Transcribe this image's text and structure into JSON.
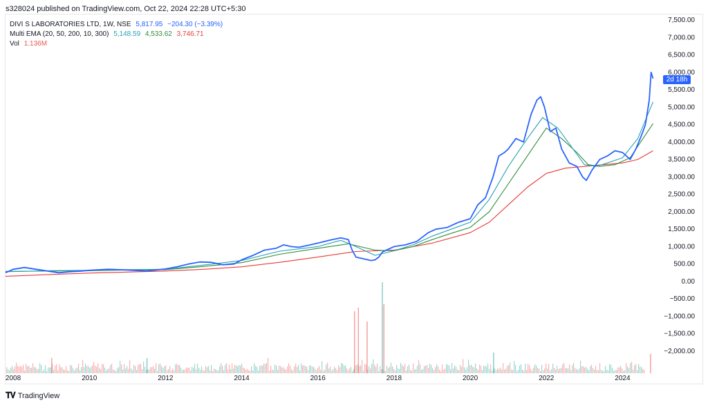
{
  "publish_line": "s328024 published on TradingView.com, Oct 22, 2024 22:28 UTC+5:30",
  "legend": {
    "symbol": "DIVI S LABORATORIES LTD, 1W, NSE",
    "last": "5,817.95",
    "change": "−204.30 (−3.39%)",
    "ema_label": "Multi EMA (20, 50, 200, 10, 300)",
    "ema_values": [
      "5,148.59",
      "4,533.62",
      "3,746.71"
    ],
    "vol_label": "Vol",
    "vol_value": "1.136M"
  },
  "price_tag": "2d 18h",
  "brand": "TradingView",
  "colors": {
    "price": "#2962ff",
    "ema20": "#26a0b3",
    "ema50": "#2e8b3a",
    "ema200": "#e53935",
    "vol_up": "#26a69a",
    "vol_down": "#ef5350"
  },
  "chart_data": {
    "type": "line",
    "title": "DIVI S LABORATORIES LTD, 1W, NSE",
    "ylim": [
      -2000,
      7500
    ],
    "y_ticks": [
      "7,500.00",
      "7,000.00",
      "6,500.00",
      "6,000.00",
      "5,500.00",
      "5,000.00",
      "4,500.00",
      "4,000.00",
      "3,500.00",
      "3,000.00",
      "2,500.00",
      "2,000.00",
      "1,500.00",
      "1,000.00",
      "500.00",
      "0.00",
      "−500.00",
      "−1,000.00",
      "−1,500.00",
      "−2,000.00"
    ],
    "y_tick_values": [
      7500,
      7000,
      6500,
      6000,
      5500,
      5000,
      4500,
      4000,
      3500,
      3000,
      2500,
      2000,
      1500,
      1000,
      500,
      0,
      -500,
      -1000,
      -1500,
      -2000
    ],
    "xlim": [
      2007.8,
      2024.9
    ],
    "x_ticks": [
      "2008",
      "2010",
      "2012",
      "2014",
      "2016",
      "2018",
      "2020",
      "2022",
      "2024"
    ],
    "x_tick_values": [
      2008,
      2010,
      2012,
      2014,
      2016,
      2018,
      2020,
      2022,
      2024
    ],
    "series": [
      {
        "name": "DIVI S LABORATORIES LTD",
        "color": "#2962ff",
        "x": [
          2007.8,
          2008.0,
          2008.3,
          2008.6,
          2008.9,
          2009.2,
          2009.5,
          2009.8,
          2010.0,
          2010.5,
          2011.0,
          2011.5,
          2012.0,
          2012.3,
          2012.6,
          2012.9,
          2013.2,
          2013.5,
          2013.8,
          2014.0,
          2014.3,
          2014.6,
          2014.9,
          2015.1,
          2015.3,
          2015.5,
          2015.8,
          2016.0,
          2016.3,
          2016.6,
          2016.8,
          2016.9,
          2017.0,
          2017.2,
          2017.4,
          2017.5,
          2017.6,
          2017.7,
          2018.0,
          2018.3,
          2018.6,
          2018.9,
          2019.1,
          2019.4,
          2019.7,
          2020.0,
          2020.2,
          2020.4,
          2020.6,
          2020.75,
          2020.9,
          2021.0,
          2021.2,
          2021.4,
          2021.6,
          2021.75,
          2021.85,
          2021.95,
          2022.1,
          2022.25,
          2022.4,
          2022.6,
          2022.8,
          2022.95,
          2023.05,
          2023.2,
          2023.4,
          2023.6,
          2023.8,
          2024.0,
          2024.2,
          2024.35,
          2024.5,
          2024.6,
          2024.7,
          2024.75,
          2024.8
        ],
        "y": [
          250,
          350,
          400,
          350,
          300,
          250,
          280,
          300,
          320,
          350,
          330,
          300,
          360,
          420,
          500,
          560,
          550,
          480,
          500,
          620,
          750,
          900,
          950,
          1050,
          1000,
          980,
          1050,
          1100,
          1180,
          1250,
          1200,
          900,
          700,
          650,
          600,
          620,
          700,
          850,
          1000,
          1050,
          1150,
          1400,
          1500,
          1550,
          1700,
          1800,
          2200,
          2400,
          3000,
          3600,
          3700,
          3800,
          4100,
          4000,
          4800,
          5200,
          5300,
          5000,
          4300,
          4400,
          3800,
          3400,
          3300,
          3000,
          2900,
          3200,
          3500,
          3600,
          3750,
          3700,
          3500,
          3800,
          4200,
          4500,
          5200,
          6000,
          5820
        ]
      },
      {
        "name": "EMA 20",
        "color": "#26a0b3",
        "x": [
          2007.8,
          2009.0,
          2010.0,
          2011.0,
          2012.0,
          2013.0,
          2014.0,
          2015.0,
          2016.0,
          2016.6,
          2017.0,
          2017.5,
          2018.0,
          2018.5,
          2019.0,
          2019.5,
          2020.0,
          2020.5,
          2021.0,
          2021.5,
          2021.9,
          2022.3,
          2022.7,
          2023.0,
          2023.3,
          2023.6,
          2024.0,
          2024.4,
          2024.8
        ],
        "y": [
          280,
          310,
          320,
          340,
          350,
          470,
          600,
          870,
          1000,
          1180,
          1000,
          750,
          880,
          1050,
          1300,
          1500,
          1700,
          2350,
          3300,
          4100,
          4700,
          4400,
          3800,
          3350,
          3300,
          3400,
          3550,
          4100,
          5150
        ]
      },
      {
        "name": "EMA 50",
        "color": "#2e8b3a",
        "x": [
          2007.8,
          2009.0,
          2010.0,
          2011.0,
          2012.0,
          2013.0,
          2014.0,
          2015.0,
          2016.0,
          2016.8,
          2017.5,
          2018.0,
          2018.5,
          2019.0,
          2019.5,
          2020.0,
          2020.5,
          2021.0,
          2021.5,
          2022.0,
          2022.4,
          2022.8,
          2023.1,
          2023.4,
          2023.8,
          2024.2,
          2024.8
        ],
        "y": [
          290,
          300,
          310,
          330,
          340,
          430,
          540,
          780,
          950,
          1080,
          900,
          880,
          1000,
          1200,
          1380,
          1550,
          2000,
          2800,
          3600,
          4400,
          4100,
          3700,
          3350,
          3300,
          3350,
          3550,
          4530
        ]
      },
      {
        "name": "EMA 200",
        "color": "#e53935",
        "x": [
          2007.8,
          2009.0,
          2010.0,
          2011.0,
          2012.0,
          2013.0,
          2014.0,
          2015.0,
          2016.0,
          2017.0,
          2018.0,
          2019.0,
          2020.0,
          2020.5,
          2021.0,
          2021.5,
          2022.0,
          2022.5,
          2023.0,
          2023.5,
          2024.0,
          2024.4,
          2024.8
        ],
        "y": [
          150,
          200,
          240,
          270,
          300,
          350,
          420,
          550,
          700,
          860,
          900,
          1100,
          1400,
          1700,
          2200,
          2700,
          3100,
          3250,
          3300,
          3350,
          3400,
          3500,
          3750
        ]
      }
    ]
  }
}
